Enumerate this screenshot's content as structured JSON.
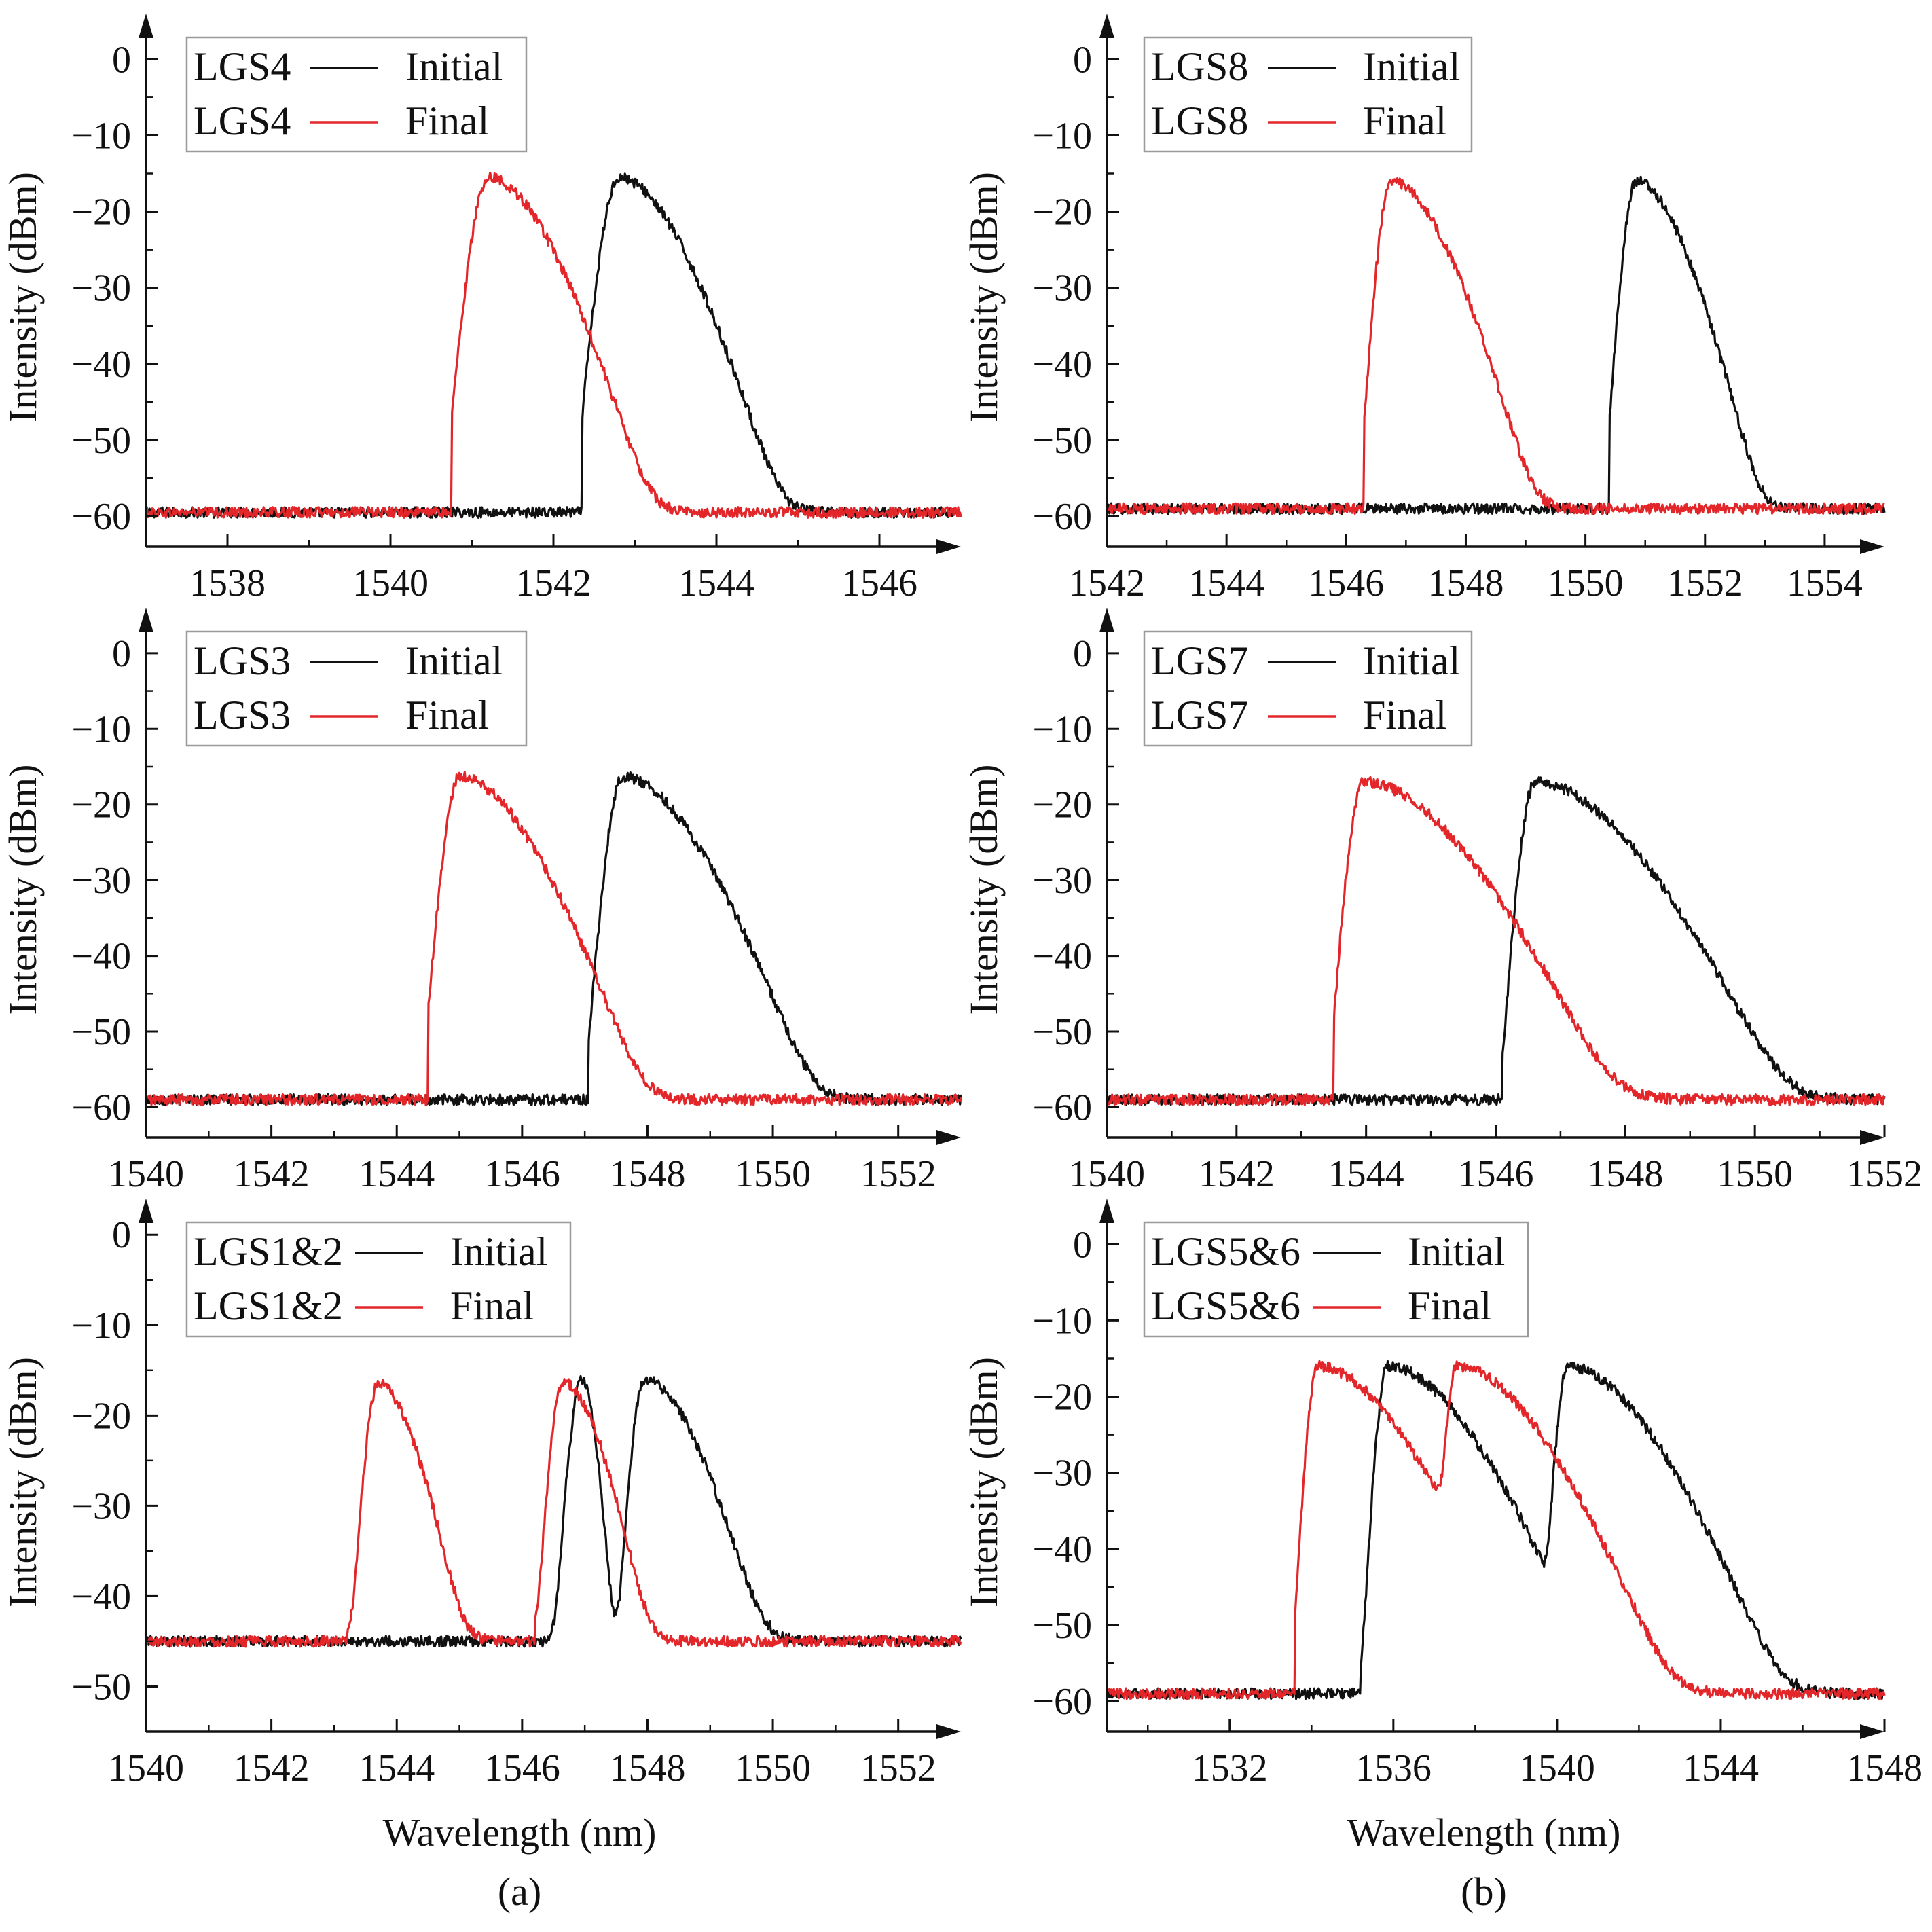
{
  "figure": {
    "colors": {
      "initial": "#111111",
      "final": "#e3262a",
      "axis": "#111111",
      "legend_border": "#9a9a9a"
    },
    "xlabel": "Wavelength (nm)",
    "ylabel": "Intensity (dBm)",
    "panel_labels": [
      "(a)",
      "(b)"
    ]
  },
  "chart_data": [
    {
      "id": "a-top",
      "type": "line",
      "column": "(a)",
      "xlim": [
        1537,
        1547
      ],
      "ylim": [
        -64,
        6
      ],
      "xticks": [
        1538,
        1540,
        1542,
        1544,
        1546
      ],
      "yticks": [
        0,
        -10,
        -20,
        -30,
        -40,
        -50,
        -60
      ],
      "baseline": -59.5,
      "noise": 0.7,
      "series": [
        {
          "name": "Initial",
          "legend_label": "LGS4",
          "color": "#111111",
          "peaks": [
            {
              "center": 1542.8,
              "peak": -15.5,
              "left_width": 0.25,
              "right_width": 0.9,
              "left_edge": 1542.35
            }
          ]
        },
        {
          "name": "Final",
          "legend_label": "LGS4",
          "color": "#e3262a",
          "peaks": [
            {
              "center": 1541.2,
              "peak": -15.5,
              "left_width": 0.25,
              "right_width": 0.9,
              "left_edge": 1540.75
            }
          ]
        }
      ]
    },
    {
      "id": "b-top",
      "type": "line",
      "column": "(b)",
      "xlim": [
        1542,
        1555
      ],
      "ylim": [
        -64,
        6
      ],
      "xticks": [
        1542,
        1544,
        1546,
        1548,
        1550,
        1552,
        1554
      ],
      "yticks": [
        0,
        -10,
        -20,
        -30,
        -40,
        -50,
        -60
      ],
      "baseline": -59.0,
      "noise": 0.7,
      "series": [
        {
          "name": "Initial",
          "legend_label": "LGS8",
          "color": "#111111",
          "peaks": [
            {
              "center": 1550.85,
              "peak": -16,
              "left_width": 0.25,
              "right_width": 0.95,
              "left_edge": 1550.4
            }
          ]
        },
        {
          "name": "Final",
          "legend_label": "LGS8",
          "color": "#e3262a",
          "peaks": [
            {
              "center": 1546.75,
              "peak": -16,
              "left_width": 0.25,
              "right_width": 1.1,
              "left_edge": 1546.3
            }
          ]
        }
      ]
    },
    {
      "id": "a-middle",
      "type": "line",
      "column": "(a)",
      "xlim": [
        1540,
        1553
      ],
      "ylim": [
        -64,
        6
      ],
      "xticks": [
        1540,
        1542,
        1544,
        1546,
        1548,
        1550,
        1552
      ],
      "yticks": [
        0,
        -10,
        -20,
        -30,
        -40,
        -50,
        -60
      ],
      "baseline": -59.0,
      "noise": 0.7,
      "series": [
        {
          "name": "Initial",
          "legend_label": "LGS3",
          "color": "#111111",
          "peaks": [
            {
              "center": 1547.6,
              "peak": -16.3,
              "left_width": 0.28,
              "right_width": 1.4,
              "left_edge": 1547.05
            }
          ]
        },
        {
          "name": "Final",
          "legend_label": "LGS3",
          "color": "#e3262a",
          "peaks": [
            {
              "center": 1545.0,
              "peak": -16.3,
              "left_width": 0.28,
              "right_width": 1.35,
              "left_edge": 1544.5
            }
          ]
        }
      ]
    },
    {
      "id": "b-middle",
      "type": "line",
      "column": "(b)",
      "xlim": [
        1540,
        1552
      ],
      "ylim": [
        -64,
        6
      ],
      "xticks": [
        1540,
        1542,
        1544,
        1546,
        1548,
        1550,
        1552
      ],
      "yticks": [
        0,
        -10,
        -20,
        -30,
        -40,
        -50,
        -60
      ],
      "baseline": -59.0,
      "noise": 0.7,
      "series": [
        {
          "name": "Initial",
          "legend_label": "LGS7",
          "color": "#111111",
          "peaks": [
            {
              "center": 1546.6,
              "peak": -17,
              "left_width": 0.25,
              "right_width": 1.8,
              "left_edge": 1546.1
            }
          ]
        },
        {
          "name": "Final",
          "legend_label": "LGS7",
          "color": "#e3262a",
          "peaks": [
            {
              "center": 1543.95,
              "peak": -17,
              "left_width": 0.25,
              "right_width": 1.8,
              "left_edge": 1543.5
            }
          ]
        }
      ]
    },
    {
      "id": "a-bottom",
      "type": "line",
      "column": "(a)",
      "xlim": [
        1540,
        1553
      ],
      "ylim": [
        -55,
        4
      ],
      "xticks": [
        1540,
        1542,
        1544,
        1546,
        1548,
        1550,
        1552
      ],
      "yticks": [
        0,
        -10,
        -20,
        -30,
        -40,
        -50
      ],
      "baseline": -45.0,
      "noise": 0.6,
      "series": [
        {
          "name": "Initial",
          "legend_label": "LGS1&2",
          "color": "#111111",
          "peaks": [
            {
              "center": 1546.95,
              "peak": -16,
              "left_width": 0.25,
              "right_width": 0.3,
              "left_edge": 1546.4
            },
            {
              "center": 1547.95,
              "peak": -16,
              "left_width": 0.25,
              "right_width": 1.1,
              "left_edge": 1547.4
            }
          ]
        },
        {
          "name": "Final",
          "legend_label": "LGS1&2",
          "color": "#e3262a",
          "peaks": [
            {
              "center": 1543.7,
              "peak": -16.5,
              "left_width": 0.25,
              "right_width": 0.8,
              "left_edge": 1543.2
            },
            {
              "center": 1546.65,
              "peak": -16.3,
              "left_width": 0.25,
              "right_width": 0.8,
              "left_edge": 1546.2
            }
          ]
        }
      ]
    },
    {
      "id": "b-bottom",
      "type": "line",
      "column": "(b)",
      "xlim": [
        1529,
        1548
      ],
      "ylim": [
        -64,
        6
      ],
      "xticks": [
        1532,
        1536,
        1540,
        1544,
        1548
      ],
      "yticks": [
        0,
        -10,
        -20,
        -30,
        -40,
        -50,
        -60
      ],
      "baseline": -59.0,
      "noise": 0.7,
      "series": [
        {
          "name": "Initial",
          "legend_label": "LGS5&6",
          "color": "#111111",
          "peaks": [
            {
              "center": 1535.85,
              "peak": -16,
              "left_width": 0.3,
              "right_width": 2.4,
              "left_edge": 1535.2
            },
            {
              "center": 1540.25,
              "peak": -16,
              "left_width": 0.3,
              "right_width": 2.4,
              "left_edge": 1539.7
            }
          ]
        },
        {
          "name": "Final",
          "legend_label": "LGS5&6",
          "color": "#e3262a",
          "peaks": [
            {
              "center": 1534.15,
              "peak": -16,
              "left_width": 0.3,
              "right_width": 2.4,
              "left_edge": 1533.6
            },
            {
              "center": 1537.55,
              "peak": -16,
              "left_width": 0.3,
              "right_width": 2.4,
              "left_edge": 1537.0
            }
          ]
        }
      ]
    }
  ]
}
